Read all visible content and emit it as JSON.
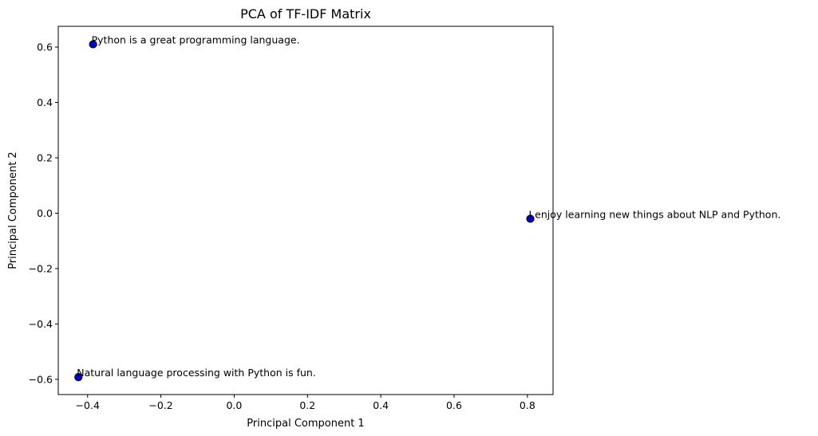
{
  "chart_data": {
    "type": "scatter",
    "title": "PCA of TF-IDF Matrix",
    "xlabel": "Principal Component 1",
    "ylabel": "Principal Component 2",
    "xlim": [
      -0.48,
      0.87
    ],
    "ylim": [
      -0.655,
      0.675
    ],
    "xticks": [
      -0.4,
      -0.2,
      0.0,
      0.2,
      0.4,
      0.6,
      0.8
    ],
    "xtick_labels": [
      "−0.4",
      "−0.2",
      "0.0",
      "0.2",
      "0.4",
      "0.6",
      "0.8"
    ],
    "yticks": [
      -0.6,
      -0.4,
      -0.2,
      0.0,
      0.2,
      0.4,
      0.6
    ],
    "ytick_labels": [
      "−0.6",
      "−0.4",
      "−0.2",
      "0.0",
      "0.2",
      "0.4",
      "0.6"
    ],
    "grid": false,
    "marker_color": "#0000cc",
    "marker_edge_color": "#000000",
    "points": [
      {
        "x": -0.385,
        "y": 0.61,
        "label": "Python is a great programming language."
      },
      {
        "x": 0.808,
        "y": -0.02,
        "label": "I enjoy learning new things about NLP and Python."
      },
      {
        "x": -0.425,
        "y": -0.592,
        "label": "Natural language processing with Python is fun."
      }
    ]
  }
}
